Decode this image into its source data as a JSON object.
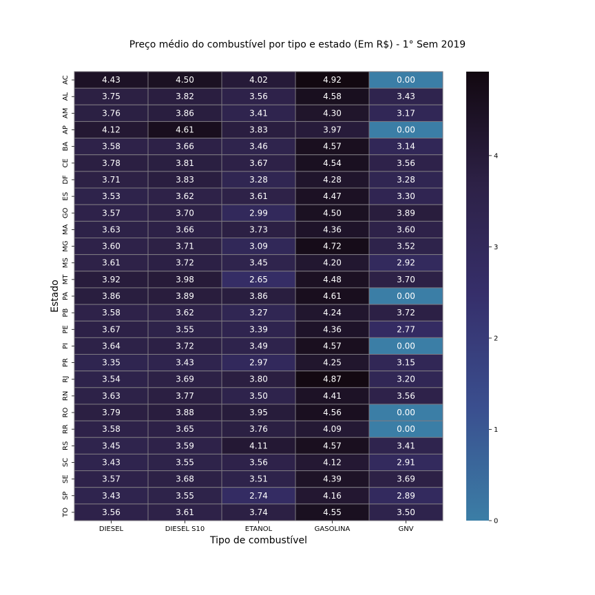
{
  "chart_data": {
    "type": "heatmap",
    "title": "Preço médio do combustível por tipo e estado (Em R$) - 1° Sem 2019",
    "xlabel": "Tipo de combustível",
    "ylabel": "Estado",
    "columns": [
      "DIESEL",
      "DIESEL S10",
      "ETANOL",
      "GASOLINA",
      "GNV"
    ],
    "rows": [
      "AC",
      "AL",
      "AM",
      "AP",
      "BA",
      "CE",
      "DF",
      "ES",
      "GO",
      "MA",
      "MG",
      "MS",
      "MT",
      "PA",
      "PB",
      "PE",
      "PI",
      "PR",
      "RJ",
      "RN",
      "RO",
      "RR",
      "RS",
      "SC",
      "SE",
      "SP",
      "TO"
    ],
    "values": [
      [
        4.43,
        4.5,
        4.02,
        4.92,
        0.0
      ],
      [
        3.75,
        3.82,
        3.56,
        4.58,
        3.43
      ],
      [
        3.76,
        3.86,
        3.41,
        4.3,
        3.17
      ],
      [
        4.12,
        4.61,
        3.83,
        3.97,
        0.0
      ],
      [
        3.58,
        3.66,
        3.46,
        4.57,
        3.14
      ],
      [
        3.78,
        3.81,
        3.67,
        4.54,
        3.56
      ],
      [
        3.71,
        3.83,
        3.28,
        4.28,
        3.28
      ],
      [
        3.53,
        3.62,
        3.61,
        4.47,
        3.3
      ],
      [
        3.57,
        3.7,
        2.99,
        4.5,
        3.89
      ],
      [
        3.63,
        3.66,
        3.73,
        4.36,
        3.6
      ],
      [
        3.6,
        3.71,
        3.09,
        4.72,
        3.52
      ],
      [
        3.61,
        3.72,
        3.45,
        4.2,
        2.92
      ],
      [
        3.92,
        3.98,
        2.65,
        4.48,
        3.7
      ],
      [
        3.86,
        3.89,
        3.86,
        4.61,
        0.0
      ],
      [
        3.58,
        3.62,
        3.27,
        4.24,
        3.72
      ],
      [
        3.67,
        3.55,
        3.39,
        4.36,
        2.77
      ],
      [
        3.64,
        3.72,
        3.49,
        4.57,
        0.0
      ],
      [
        3.35,
        3.43,
        2.97,
        4.25,
        3.15
      ],
      [
        3.54,
        3.69,
        3.8,
        4.87,
        3.2
      ],
      [
        3.63,
        3.77,
        3.5,
        4.41,
        3.56
      ],
      [
        3.79,
        3.88,
        3.95,
        4.56,
        0.0
      ],
      [
        3.58,
        3.65,
        3.76,
        4.09,
        0.0
      ],
      [
        3.45,
        3.59,
        4.11,
        4.57,
        3.41
      ],
      [
        3.43,
        3.55,
        3.56,
        4.12,
        2.91
      ],
      [
        3.57,
        3.68,
        3.51,
        4.39,
        3.69
      ],
      [
        3.43,
        3.55,
        2.74,
        4.16,
        2.89
      ],
      [
        3.56,
        3.61,
        3.74,
        4.55,
        3.5
      ]
    ],
    "colorbar": {
      "vmin": 0,
      "vmax": 4.92,
      "ticks": [
        0,
        1,
        2,
        3,
        4
      ],
      "colors": [
        "#3b7ea6",
        "#3a4f8f",
        "#362f6b",
        "#2d2146",
        "#120810"
      ]
    },
    "grid_color": "#7f7b82",
    "text_color": "#ffffff"
  }
}
